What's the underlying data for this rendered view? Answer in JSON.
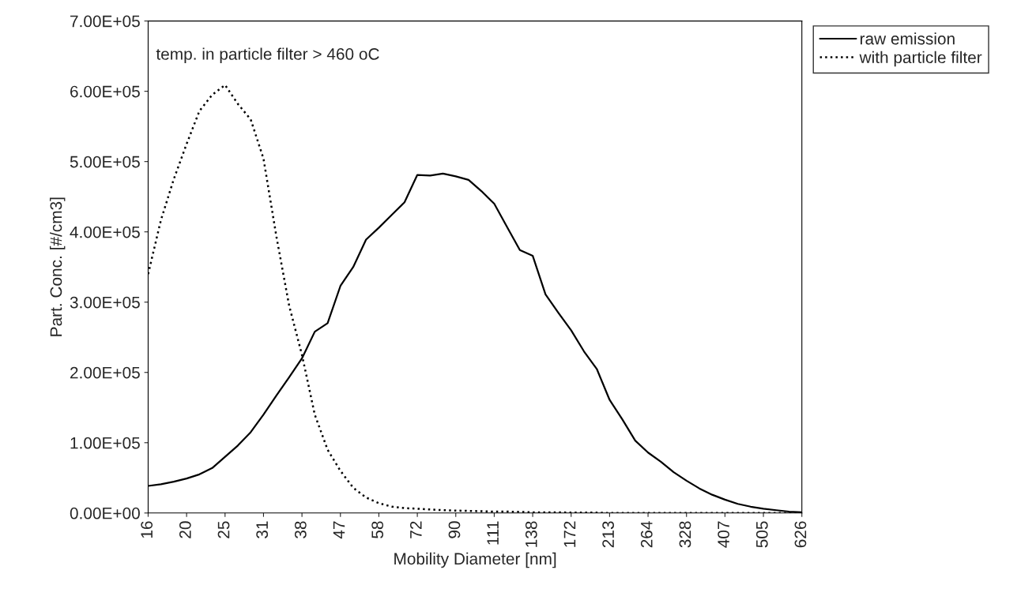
{
  "chart_data": {
    "type": "line",
    "categories": [
      "16",
      null,
      null,
      "20",
      null,
      null,
      "25",
      null,
      null,
      "31",
      null,
      null,
      "38",
      null,
      null,
      "47",
      null,
      null,
      "58",
      null,
      null,
      "72",
      null,
      null,
      "90",
      null,
      null,
      "111",
      null,
      null,
      "138",
      null,
      null,
      "172",
      null,
      null,
      "213",
      null,
      null,
      "264",
      null,
      null,
      "328",
      null,
      null,
      "407",
      null,
      null,
      "505",
      null,
      null,
      "626"
    ],
    "series": [
      {
        "name": "raw emission",
        "color": "#000000",
        "line_style": "solid",
        "values": [
          38500,
          41000,
          44500,
          49000,
          55000,
          64000,
          80000,
          96000,
          115000,
          140000,
          167000,
          193000,
          220000,
          258000,
          270000,
          323000,
          350000,
          389000,
          406000,
          424000,
          442000,
          481000,
          480000,
          483000,
          479000,
          474000,
          458000,
          440000,
          407000,
          374000,
          366000,
          311000,
          285000,
          260000,
          230000,
          205000,
          161000,
          133000,
          103000,
          86000,
          73000,
          58000,
          46000,
          35000,
          26000,
          19000,
          13000,
          9000,
          6000,
          4000,
          2000,
          1000
        ]
      },
      {
        "name": "with particle filter",
        "color": "#000000",
        "line_style": "dotted",
        "values": [
          340000,
          417000,
          475000,
          525000,
          572000,
          595000,
          609000,
          582000,
          560000,
          504000,
          394000,
          295000,
          225000,
          140000,
          90000,
          60000,
          36000,
          22000,
          14000,
          9000,
          7000,
          6000,
          5000,
          4000,
          3500,
          3000,
          2500,
          2000,
          2000,
          1500,
          1000,
          1000,
          1000,
          500,
          500,
          500,
          0,
          0,
          0,
          0,
          0,
          0,
          0,
          0,
          0,
          0,
          0,
          0,
          0,
          0,
          0,
          0
        ]
      }
    ],
    "xlabel": "Mobility Diameter [nm]",
    "ylabel": "Part. Conc. [#/cm3]",
    "ylim": [
      0,
      700000
    ],
    "yticks": [
      {
        "value": 0,
        "label": "0.00E+00"
      },
      {
        "value": 100000,
        "label": "1.00E+05"
      },
      {
        "value": 200000,
        "label": "2.00E+05"
      },
      {
        "value": 300000,
        "label": "3.00E+05"
      },
      {
        "value": 400000,
        "label": "4.00E+05"
      },
      {
        "value": 500000,
        "label": "5.00E+05"
      },
      {
        "value": 600000,
        "label": "6.00E+05"
      },
      {
        "value": 700000,
        "label": "7.00E+05"
      }
    ],
    "annotations": [
      "temp. in particle filter > 460 oC"
    ],
    "legend": "top right",
    "grid": false,
    "marker": "none"
  }
}
